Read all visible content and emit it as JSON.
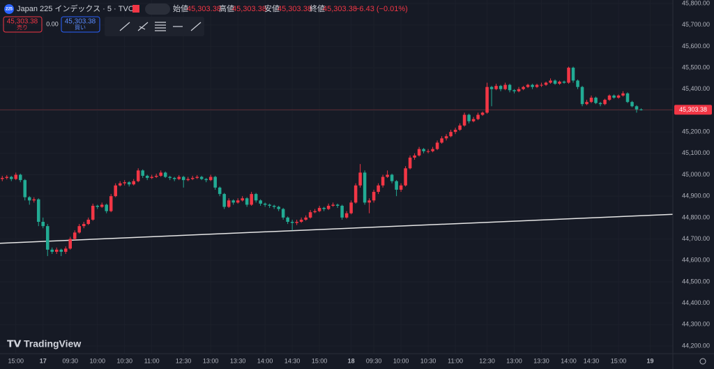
{
  "chart_data": {
    "type": "candlestick",
    "header": {
      "badge": "225",
      "symbol": "Japan 225 インデックス · 5 · TVC",
      "open_label": "始値",
      "open": "45,303.38",
      "high_label": "高値",
      "high": "45,303.38",
      "low_label": "安値",
      "low": "45,303.38",
      "close_label": "終値",
      "close": "45,303.38",
      "change": "−6.43 (−0.01%)"
    },
    "trade": {
      "sell_price": "45,303.38",
      "sell_label": "売り",
      "spread": "0.00",
      "buy_price": "45,303.38",
      "buy_label": "買い"
    },
    "brand": "TradingView",
    "up_color": "#f23645",
    "down_color": "#22ab94",
    "grid": true,
    "last_price": {
      "value": 45303.38,
      "label": "45,303.38"
    },
    "trendline": {
      "x": [
        -0.5,
        148
      ],
      "y": [
        44680,
        44815
      ]
    },
    "xlim": [
      -0.5,
      148
    ],
    "xticks": [
      {
        "value": 3,
        "label": "15:00"
      },
      {
        "value": 9,
        "label": "17"
      },
      {
        "value": 15,
        "label": "09:30"
      },
      {
        "value": 21,
        "label": "10:00"
      },
      {
        "value": 27,
        "label": "10:30"
      },
      {
        "value": 33,
        "label": "11:00"
      },
      {
        "value": 40,
        "label": "12:30"
      },
      {
        "value": 46,
        "label": "13:00"
      },
      {
        "value": 52,
        "label": "13:30"
      },
      {
        "value": 58,
        "label": "14:00"
      },
      {
        "value": 64,
        "label": "14:30"
      },
      {
        "value": 70,
        "label": "15:00"
      },
      {
        "value": 77,
        "label": "18"
      },
      {
        "value": 82,
        "label": "09:30"
      },
      {
        "value": 88,
        "label": "10:00"
      },
      {
        "value": 94,
        "label": "10:30"
      },
      {
        "value": 100,
        "label": "11:00"
      },
      {
        "value": 107,
        "label": "12:30"
      },
      {
        "value": 113,
        "label": "13:00"
      },
      {
        "value": 119,
        "label": "13:30"
      },
      {
        "value": 125,
        "label": "14:00"
      },
      {
        "value": 130,
        "label": "14:30"
      },
      {
        "value": 136,
        "label": "15:00"
      },
      {
        "value": 143,
        "label": "19"
      }
    ],
    "ylim": [
      44200,
      45800
    ],
    "yticks": [
      {
        "value": 44200,
        "label": "44,200.00"
      },
      {
        "value": 44300,
        "label": "44,300.00"
      },
      {
        "value": 44400,
        "label": "44,400.00"
      },
      {
        "value": 44500,
        "label": "44,500.00"
      },
      {
        "value": 44600,
        "label": "44,600.00"
      },
      {
        "value": 44700,
        "label": "44,700.00"
      },
      {
        "value": 44800,
        "label": "44,800.00"
      },
      {
        "value": 44900,
        "label": "44,900.00"
      },
      {
        "value": 45000,
        "label": "45,000.00"
      },
      {
        "value": 45100,
        "label": "45,100.00"
      },
      {
        "value": 45200,
        "label": "45,200.00"
      },
      {
        "value": 45300,
        "label": "45,300.00"
      },
      {
        "value": 45400,
        "label": "45,400.00"
      },
      {
        "value": 45500,
        "label": "45,500.00"
      },
      {
        "value": 45600,
        "label": "45,600.00"
      },
      {
        "value": 45700,
        "label": "45,700.00"
      },
      {
        "value": 45800,
        "label": "45,800.00"
      }
    ],
    "candles": [
      [
        44980,
        44995,
        44970,
        44985
      ],
      [
        44985,
        44998,
        44978,
        44990
      ],
      [
        44990,
        44995,
        44970,
        44980
      ],
      [
        44980,
        45010,
        44975,
        45000
      ],
      [
        45000,
        45005,
        44965,
        44975
      ],
      [
        44975,
        44980,
        44880,
        44895
      ],
      [
        44895,
        44900,
        44860,
        44880
      ],
      [
        44880,
        44895,
        44870,
        44885
      ],
      [
        44885,
        44890,
        44760,
        44780
      ],
      [
        44780,
        44800,
        44750,
        44760
      ],
      [
        44760,
        44770,
        44620,
        44650
      ],
      [
        44650,
        44660,
        44630,
        44640
      ],
      [
        44640,
        44660,
        44630,
        44650
      ],
      [
        44650,
        44655,
        44620,
        44640
      ],
      [
        44640,
        44665,
        44630,
        44655
      ],
      [
        44655,
        44710,
        44650,
        44700
      ],
      [
        44700,
        44740,
        44695,
        44730
      ],
      [
        44730,
        44770,
        44725,
        44760
      ],
      [
        44760,
        44780,
        44750,
        44770
      ],
      [
        44770,
        44800,
        44765,
        44790
      ],
      [
        44790,
        44865,
        44785,
        44855
      ],
      [
        44855,
        44860,
        44840,
        44850
      ],
      [
        44850,
        44870,
        44845,
        44860
      ],
      [
        44860,
        44865,
        44820,
        44830
      ],
      [
        44830,
        44910,
        44825,
        44900
      ],
      [
        44900,
        44960,
        44895,
        44950
      ],
      [
        44950,
        44970,
        44945,
        44960
      ],
      [
        44960,
        44975,
        44950,
        44965
      ],
      [
        44965,
        44970,
        44945,
        44955
      ],
      [
        44955,
        44980,
        44950,
        44970
      ],
      [
        44970,
        45030,
        44965,
        45020
      ],
      [
        45020,
        45025,
        44985,
        44995
      ],
      [
        44995,
        45000,
        44975,
        44985
      ],
      [
        44985,
        45000,
        44980,
        44990
      ],
      [
        44990,
        45005,
        44985,
        44995
      ],
      [
        44995,
        45020,
        44990,
        45010
      ],
      [
        45010,
        45015,
        44985,
        44990
      ],
      [
        44990,
        44995,
        44975,
        44985
      ],
      [
        44985,
        44990,
        44970,
        44980
      ],
      [
        44980,
        44998,
        44975,
        44990
      ],
      [
        44990,
        44995,
        44940,
        44975
      ],
      [
        44975,
        44990,
        44970,
        44980
      ],
      [
        44980,
        44995,
        44975,
        44985
      ],
      [
        44985,
        44998,
        44980,
        44990
      ],
      [
        44990,
        44995,
        44975,
        44980
      ],
      [
        44980,
        44985,
        44965,
        44975
      ],
      [
        44975,
        45000,
        44970,
        44990
      ],
      [
        44990,
        44995,
        44930,
        44940
      ],
      [
        44940,
        44945,
        44900,
        44910
      ],
      [
        44910,
        44915,
        44840,
        44850
      ],
      [
        44850,
        44890,
        44845,
        44880
      ],
      [
        44880,
        44885,
        44860,
        44870
      ],
      [
        44870,
        44890,
        44865,
        44880
      ],
      [
        44880,
        44900,
        44875,
        44890
      ],
      [
        44890,
        44895,
        44850,
        44860
      ],
      [
        44860,
        44920,
        44855,
        44910
      ],
      [
        44910,
        44915,
        44870,
        44880
      ],
      [
        44880,
        44885,
        44855,
        44865
      ],
      [
        44865,
        44870,
        44850,
        44860
      ],
      [
        44860,
        44865,
        44845,
        44855
      ],
      [
        44855,
        44860,
        44840,
        44850
      ],
      [
        44850,
        44855,
        44830,
        44840
      ],
      [
        44840,
        44845,
        44790,
        44800
      ],
      [
        44800,
        44805,
        44770,
        44780
      ],
      [
        44780,
        44790,
        44740,
        44775
      ],
      [
        44775,
        44790,
        44765,
        44780
      ],
      [
        44780,
        44800,
        44775,
        44790
      ],
      [
        44790,
        44810,
        44785,
        44800
      ],
      [
        44800,
        44835,
        44795,
        44825
      ],
      [
        44825,
        44840,
        44820,
        44830
      ],
      [
        44830,
        44855,
        44825,
        44845
      ],
      [
        44845,
        44850,
        44830,
        44840
      ],
      [
        44840,
        44865,
        44835,
        44855
      ],
      [
        44855,
        44870,
        44850,
        44860
      ],
      [
        44860,
        44865,
        44845,
        44855
      ],
      [
        44855,
        44860,
        44790,
        44800
      ],
      [
        44800,
        44830,
        44795,
        44820
      ],
      [
        44820,
        44880,
        44815,
        44870
      ],
      [
        44870,
        44960,
        44865,
        44950
      ],
      [
        44950,
        45050,
        44940,
        45010
      ],
      [
        45010,
        45020,
        44860,
        44870
      ],
      [
        44870,
        44890,
        44820,
        44880
      ],
      [
        44880,
        44930,
        44870,
        44920
      ],
      [
        44920,
        44960,
        44910,
        44950
      ],
      [
        44950,
        45000,
        44940,
        44990
      ],
      [
        44990,
        45020,
        44985,
        45000
      ],
      [
        45000,
        45005,
        44960,
        44970
      ],
      [
        44970,
        44975,
        44900,
        44930
      ],
      [
        44930,
        44960,
        44920,
        44950
      ],
      [
        44950,
        45040,
        44945,
        45030
      ],
      [
        45030,
        45090,
        45025,
        45080
      ],
      [
        45080,
        45100,
        45070,
        45090
      ],
      [
        45090,
        45130,
        45085,
        45120
      ],
      [
        45120,
        45125,
        45100,
        45110
      ],
      [
        45110,
        45120,
        45100,
        45110
      ],
      [
        45110,
        45130,
        45105,
        45120
      ],
      [
        45120,
        45160,
        45115,
        45150
      ],
      [
        45150,
        45180,
        45145,
        45170
      ],
      [
        45170,
        45190,
        45160,
        45180
      ],
      [
        45180,
        45210,
        45175,
        45200
      ],
      [
        45200,
        45220,
        45190,
        45210
      ],
      [
        45210,
        45240,
        45205,
        45230
      ],
      [
        45230,
        45290,
        45225,
        45280
      ],
      [
        45280,
        45285,
        45240,
        45250
      ],
      [
        45250,
        45270,
        45245,
        45260
      ],
      [
        45260,
        45290,
        45255,
        45280
      ],
      [
        45280,
        45295,
        45275,
        45290
      ],
      [
        45290,
        45430,
        45285,
        45410
      ],
      [
        45410,
        45415,
        45320,
        45400
      ],
      [
        45400,
        45425,
        45395,
        45415
      ],
      [
        45415,
        45420,
        45390,
        45400
      ],
      [
        45400,
        45430,
        45395,
        45420
      ],
      [
        45420,
        45425,
        45385,
        45395
      ],
      [
        45395,
        45400,
        45380,
        45390
      ],
      [
        45390,
        45410,
        45385,
        45400
      ],
      [
        45400,
        45415,
        45395,
        45410
      ],
      [
        45410,
        45425,
        45405,
        45420
      ],
      [
        45420,
        45425,
        45400,
        45410
      ],
      [
        45410,
        45425,
        45405,
        45420
      ],
      [
        45420,
        45430,
        45410,
        45420
      ],
      [
        45420,
        45435,
        45415,
        45430
      ],
      [
        45430,
        45450,
        45425,
        45440
      ],
      [
        45440,
        45445,
        45420,
        45425
      ],
      [
        45425,
        45440,
        45420,
        45435
      ],
      [
        45435,
        45440,
        45425,
        45430
      ],
      [
        45430,
        45505,
        45425,
        45500
      ],
      [
        45500,
        45505,
        45430,
        45440
      ],
      [
        45440,
        45445,
        45400,
        45410
      ],
      [
        45410,
        45415,
        45320,
        45330
      ],
      [
        45330,
        45350,
        45325,
        45340
      ],
      [
        45340,
        45370,
        45335,
        45360
      ],
      [
        45360,
        45365,
        45330,
        45335
      ],
      [
        45335,
        45340,
        45320,
        45330
      ],
      [
        45330,
        45355,
        45325,
        45350
      ],
      [
        45350,
        45375,
        45345,
        45370
      ],
      [
        45370,
        45375,
        45355,
        45360
      ],
      [
        45360,
        45375,
        45355,
        45370
      ],
      [
        45370,
        45390,
        45365,
        45380
      ],
      [
        45380,
        45385,
        45335,
        45340
      ],
      [
        45340,
        45345,
        45315,
        45320
      ],
      [
        45320,
        45325,
        45290,
        45305
      ],
      [
        45305,
        45310,
        45300,
        45303.38
      ]
    ]
  }
}
